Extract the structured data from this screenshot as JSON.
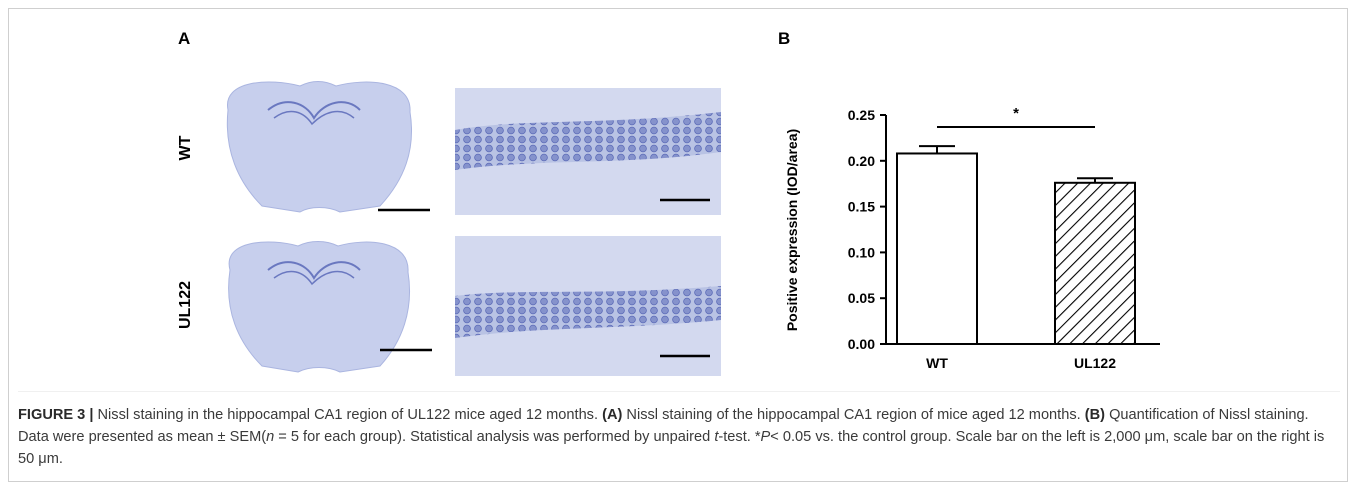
{
  "panels": {
    "a_label": "A",
    "b_label": "B",
    "rows": [
      "WT",
      "UL122"
    ]
  },
  "chart_data": {
    "type": "bar",
    "categories": [
      "WT",
      "UL122"
    ],
    "values": [
      0.208,
      0.176
    ],
    "errors": [
      0.008,
      0.005
    ],
    "colors": [
      "#ffffff",
      "#000000"
    ],
    "hatch": [
      false,
      true
    ],
    "ylabel": "Positive expression (IOD/area)",
    "ylim": [
      0,
      0.25
    ],
    "yticks": [
      {
        "value": 0,
        "label": "0.00"
      },
      0.05,
      {
        "value": 0.1,
        "label": "0.10"
      },
      0.15,
      {
        "value": 0.2,
        "label": "0.20"
      },
      0.25
    ],
    "significance": "*"
  },
  "caption": {
    "segments": [
      "FIGURE 3 |",
      " Nissl staining in the hippocampal CA1 region of UL122 mice aged 12 months. ",
      "(A)",
      " Nissl staining of the hippocampal CA1 region of mice aged 12 months. ",
      "(B)",
      " Quantification of Nissl staining. Data were presented as mean ± SEM(",
      "n",
      " = 5 for each group). Statistical analysis was performed by unpaired ",
      "t",
      "-test. *",
      "P",
      "< 0.05 vs. the control group. Scale bar on the left is 2,000 μm, scale bar on the right is 50 μm."
    ]
  }
}
